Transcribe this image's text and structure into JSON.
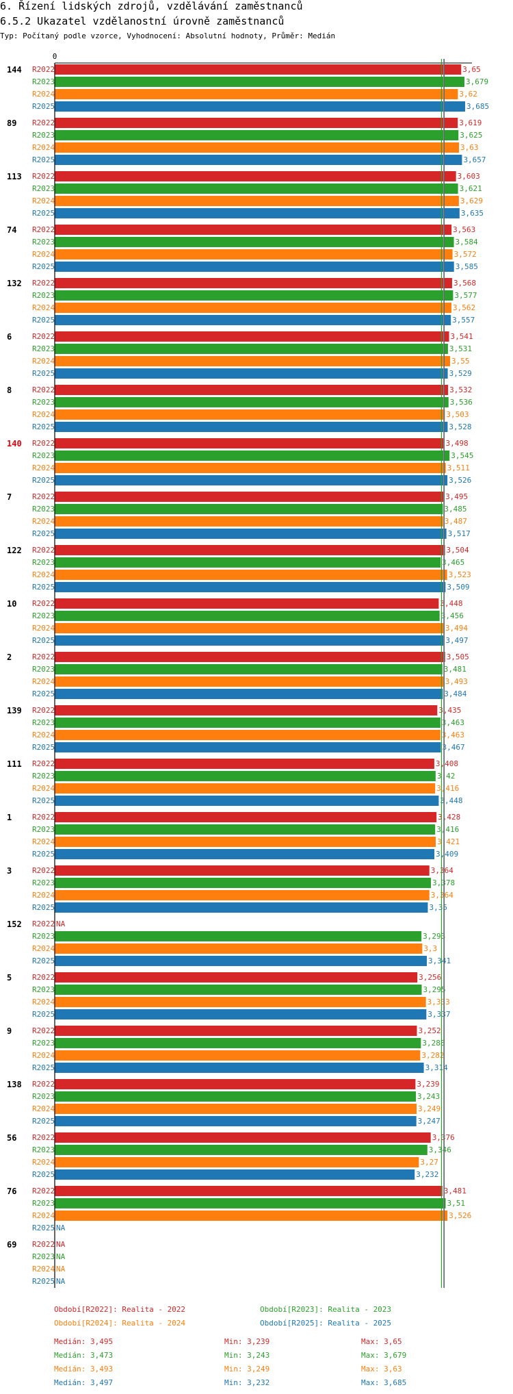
{
  "header": {
    "title": "6. Řízení lidských zdrojů, vzdělávání zaměstnanců",
    "subtitle": "6.5.2 Ukazatel vzdělanostní úrovně zaměstnanců",
    "info": "Typ: Počítaný podle vzorce, Vyhodnocení: Absolutní hodnoty, Průměr: Medián"
  },
  "chart_data": {
    "type": "bar",
    "orientation": "horizontal",
    "axis_zero_label": "0",
    "xlim": [
      0,
      3.685
    ],
    "series": [
      {
        "code": "R2022",
        "color": "#d62728"
      },
      {
        "code": "R2023",
        "color": "#2ca02c"
      },
      {
        "code": "R2024",
        "color": "#ff7f0e"
      },
      {
        "code": "R2025",
        "color": "#1f77b4"
      }
    ],
    "medians": [
      3.495,
      3.473,
      3.493,
      3.497
    ],
    "groups": [
      {
        "label": "144",
        "highlight": false,
        "values": [
          3.65,
          3.679,
          3.62,
          3.685
        ],
        "labels": [
          "3,65",
          "3,679",
          "3,62",
          "3,685"
        ]
      },
      {
        "label": "89",
        "highlight": false,
        "values": [
          3.619,
          3.625,
          3.63,
          3.657
        ],
        "labels": [
          "3,619",
          "3,625",
          "3,63",
          "3,657"
        ]
      },
      {
        "label": "113",
        "highlight": false,
        "values": [
          3.603,
          3.621,
          3.629,
          3.635
        ],
        "labels": [
          "3,603",
          "3,621",
          "3,629",
          "3,635"
        ]
      },
      {
        "label": "74",
        "highlight": false,
        "values": [
          3.563,
          3.584,
          3.572,
          3.585
        ],
        "labels": [
          "3,563",
          "3,584",
          "3,572",
          "3,585"
        ]
      },
      {
        "label": "132",
        "highlight": false,
        "values": [
          3.568,
          3.577,
          3.562,
          3.557
        ],
        "labels": [
          "3,568",
          "3,577",
          "3,562",
          "3,557"
        ]
      },
      {
        "label": "6",
        "highlight": false,
        "values": [
          3.541,
          3.531,
          3.55,
          3.529
        ],
        "labels": [
          "3,541",
          "3,531",
          "3,55",
          "3,529"
        ]
      },
      {
        "label": "8",
        "highlight": false,
        "values": [
          3.532,
          3.536,
          3.503,
          3.528
        ],
        "labels": [
          "3,532",
          "3,536",
          "3,503",
          "3,528"
        ]
      },
      {
        "label": "140",
        "highlight": true,
        "values": [
          3.498,
          3.545,
          3.511,
          3.526
        ],
        "labels": [
          "3,498",
          "3,545",
          "3,511",
          "3,526"
        ]
      },
      {
        "label": "7",
        "highlight": false,
        "values": [
          3.495,
          3.485,
          3.487,
          3.517
        ],
        "labels": [
          "3,495",
          "3,485",
          "3,487",
          "3,517"
        ]
      },
      {
        "label": "122",
        "highlight": false,
        "values": [
          3.504,
          3.465,
          3.523,
          3.509
        ],
        "labels": [
          "3,504",
          "3,465",
          "3,523",
          "3,509"
        ]
      },
      {
        "label": "10",
        "highlight": false,
        "values": [
          3.448,
          3.456,
          3.494,
          3.497
        ],
        "labels": [
          "3,448",
          "3,456",
          "3,494",
          "3,497"
        ]
      },
      {
        "label": "2",
        "highlight": false,
        "values": [
          3.505,
          3.481,
          3.493,
          3.484
        ],
        "labels": [
          "3,505",
          "3,481",
          "3,493",
          "3,484"
        ]
      },
      {
        "label": "139",
        "highlight": false,
        "values": [
          3.435,
          3.463,
          3.463,
          3.467
        ],
        "labels": [
          "3,435",
          "3,463",
          "3,463",
          "3,467"
        ]
      },
      {
        "label": "111",
        "highlight": false,
        "values": [
          3.408,
          3.42,
          3.416,
          3.448
        ],
        "labels": [
          "3,408",
          "3,42",
          "3,416",
          "3,448"
        ]
      },
      {
        "label": "1",
        "highlight": false,
        "values": [
          3.428,
          3.416,
          3.421,
          3.409
        ],
        "labels": [
          "3,428",
          "3,416",
          "3,421",
          "3,409"
        ]
      },
      {
        "label": "3",
        "highlight": false,
        "values": [
          3.364,
          3.378,
          3.364,
          3.35
        ],
        "labels": [
          "3,364",
          "3,378",
          "3,364",
          "3,35"
        ]
      },
      {
        "label": "152",
        "highlight": false,
        "values": [
          null,
          3.293,
          3.3,
          3.341
        ],
        "labels": [
          "NA",
          "3,293",
          "3,3",
          "3,341"
        ]
      },
      {
        "label": "5",
        "highlight": false,
        "values": [
          3.256,
          3.295,
          3.333,
          3.337
        ],
        "labels": [
          "3,256",
          "3,295",
          "3,333",
          "3,337"
        ]
      },
      {
        "label": "9",
        "highlight": false,
        "values": [
          3.252,
          3.288,
          3.282,
          3.314
        ],
        "labels": [
          "3,252",
          "3,288",
          "3,282",
          "3,314"
        ]
      },
      {
        "label": "138",
        "highlight": false,
        "values": [
          3.239,
          3.243,
          3.249,
          3.247
        ],
        "labels": [
          "3,239",
          "3,243",
          "3,249",
          "3,247"
        ]
      },
      {
        "label": "56",
        "highlight": false,
        "values": [
          3.376,
          3.346,
          3.27,
          3.232
        ],
        "labels": [
          "3,376",
          "3,346",
          "3,27",
          "3,232"
        ]
      },
      {
        "label": "76",
        "highlight": false,
        "values": [
          3.481,
          3.51,
          3.526,
          null
        ],
        "labels": [
          "3,481",
          "3,51",
          "3,526",
          "NA"
        ]
      },
      {
        "label": "69",
        "highlight": false,
        "values": [
          null,
          null,
          null,
          null
        ],
        "labels": [
          "NA",
          "NA",
          "NA",
          "NA"
        ]
      }
    ]
  },
  "legend": {
    "periods": [
      "Období[R2022]: Realita - 2022",
      "Období[R2023]: Realita - 2023",
      "Období[R2024]: Realita - 2024",
      "Období[R2025]: Realita - 2025"
    ],
    "stats": [
      {
        "median": "Medián: 3,495",
        "min": "Min: 3,239",
        "max": "Max: 3,65"
      },
      {
        "median": "Medián: 3,473",
        "min": "Min: 3,243",
        "max": "Max: 3,679"
      },
      {
        "median": "Medián: 3,493",
        "min": "Min: 3,249",
        "max": "Max: 3,63"
      },
      {
        "median": "Medián: 3,497",
        "min": "Min: 3,232",
        "max": "Max: 3,685"
      }
    ]
  }
}
